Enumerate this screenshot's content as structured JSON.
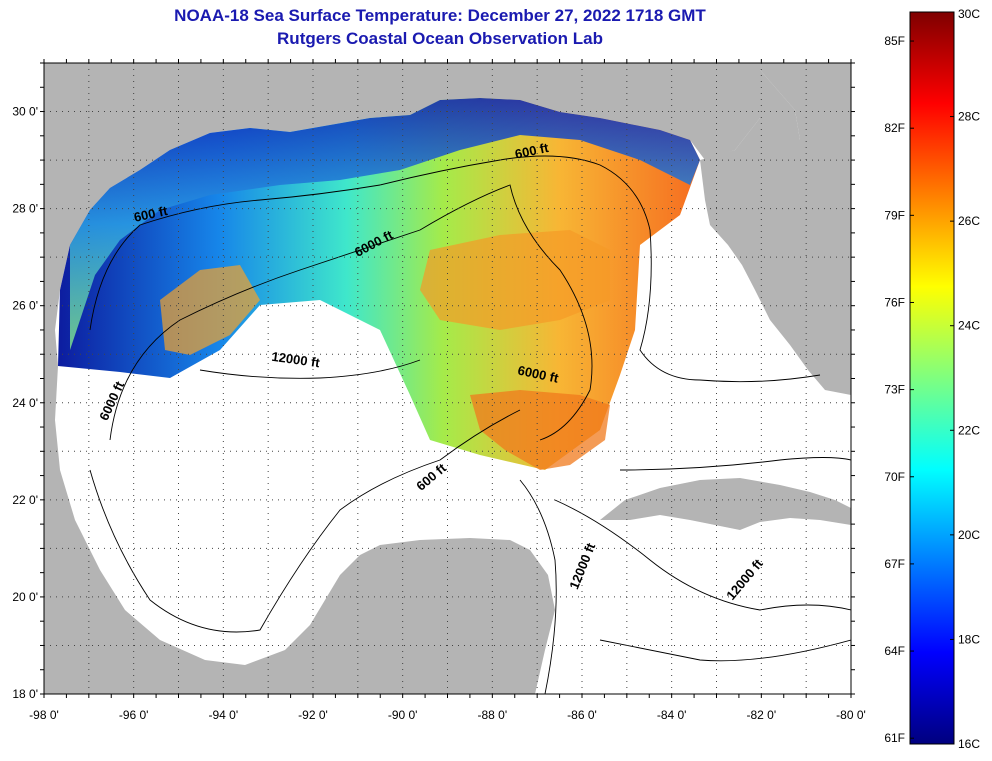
{
  "header": {
    "title": "NOAA-18 Sea Surface Temperature:  December 27, 2022 1718 GMT",
    "subtitle": "Rutgers Coastal Ocean Observation Lab"
  },
  "map": {
    "lat_ticks": [
      "18 0'",
      "20 0'",
      "22 0'",
      "24 0'",
      "26 0'",
      "28 0'",
      "30 0'"
    ],
    "lon_ticks": [
      "-98 0'",
      "-96 0'",
      "-94 0'",
      "-92 0'",
      "-90 0'",
      "-88 0'",
      "-86 0'",
      "-84 0'",
      "-82 0'",
      "-80 0'"
    ],
    "lat_range": [
      18,
      31
    ],
    "lon_range": [
      -98,
      -80
    ],
    "contour_labels": [
      {
        "text": "600 ft",
        "lon": -95.6,
        "lat": 27.8,
        "rot": -12
      },
      {
        "text": "600 ft",
        "lon": -87.1,
        "lat": 29.1,
        "rot": -12
      },
      {
        "text": "6000 ft",
        "lon": -90.6,
        "lat": 27.2,
        "rot": -28
      },
      {
        "text": "12000 ft",
        "lon": -92.4,
        "lat": 24.8,
        "rot": 8
      },
      {
        "text": "6000 ft",
        "lon": -96.4,
        "lat": 24.0,
        "rot": -65
      },
      {
        "text": "6000 ft",
        "lon": -87.0,
        "lat": 24.5,
        "rot": 12
      },
      {
        "text": "600 ft",
        "lon": -89.3,
        "lat": 22.4,
        "rot": -40
      },
      {
        "text": "12000 ft",
        "lon": -85.9,
        "lat": 20.6,
        "rot": -68
      },
      {
        "text": "12000 ft",
        "lon": -82.3,
        "lat": 20.3,
        "rot": -50
      }
    ],
    "colors": {
      "land": "#b4b4b4",
      "water": "#ffffff",
      "grid": "#555555"
    }
  },
  "colorbar": {
    "f_labels": [
      "85F",
      "82F",
      "79F",
      "76F",
      "73F",
      "70F",
      "67F",
      "64F",
      "61F"
    ],
    "c_labels": [
      "30C",
      "28C",
      "26C",
      "24C",
      "22C",
      "20C",
      "18C",
      "16C"
    ],
    "stops": [
      "#00007f",
      "#0000ff",
      "#007fff",
      "#00ffff",
      "#7fff7f",
      "#ffff00",
      "#ff7f00",
      "#ff0000",
      "#7f0000"
    ]
  }
}
